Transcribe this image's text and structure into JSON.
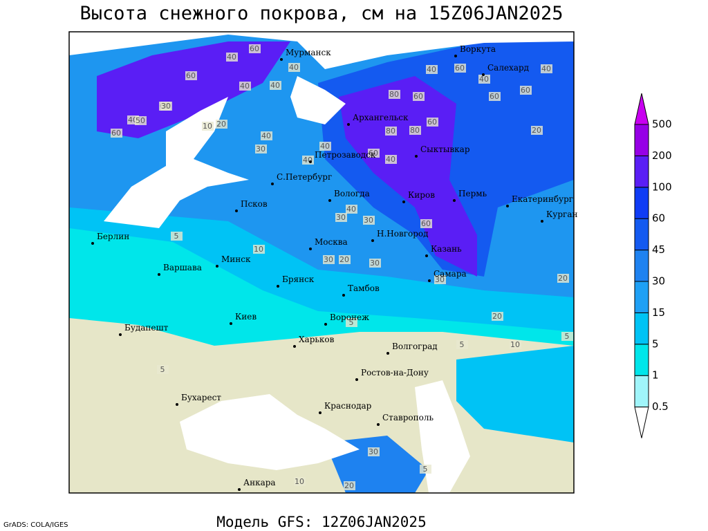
{
  "header": {
    "title": "Высота снежного покрова, см на 15Z06JAN2025"
  },
  "cities": [
    "Мурманск",
    "Воркута",
    "Салехард",
    "Архангельск",
    "Сыктывкар",
    "Петрозаводск",
    "С.Петербург",
    "Вологда",
    "Киров",
    "Пермь",
    "Екатеринбург",
    "Курган",
    "Псков",
    "Н.Новгород",
    "Москва",
    "Казань",
    "Берлин",
    "Варшава",
    "Минск",
    "Самара",
    "Брянск",
    "Тамбов",
    "Киев",
    "Воронеж",
    "Будапешт",
    "Харьков",
    "Волгоград",
    "Ростов-на-Дону",
    "Бухарест",
    "Краснодар",
    "Ставрополь",
    "Анкара"
  ],
  "contour_labels": [
    60,
    40,
    60,
    40,
    40,
    60,
    40,
    60,
    40,
    80,
    30,
    50,
    20,
    10,
    40,
    40,
    60,
    80,
    80,
    60,
    40,
    60,
    60,
    40,
    60,
    40,
    60,
    30,
    30,
    40,
    30,
    40,
    40,
    60,
    5,
    10,
    30,
    30,
    20,
    30,
    20,
    20,
    5,
    5,
    10,
    5,
    5,
    30,
    20,
    10,
    20,
    5
  ],
  "legend": {
    "levels": [
      0.5,
      1,
      5,
      15,
      30,
      45,
      60,
      100,
      200,
      500
    ],
    "colors": [
      "#ffffff",
      "#a0f5fa",
      "#00e6ea",
      "#00c3f5",
      "#1ea0f5",
      "#1e82f0",
      "#145af0",
      "#0f3cf5",
      "#5a1ef5",
      "#9600e6",
      "#c800f0"
    ]
  },
  "footer": {
    "credit": "GrADS: COLA/IGES",
    "model": "Модель GFS: 12Z06JAN2025"
  }
}
